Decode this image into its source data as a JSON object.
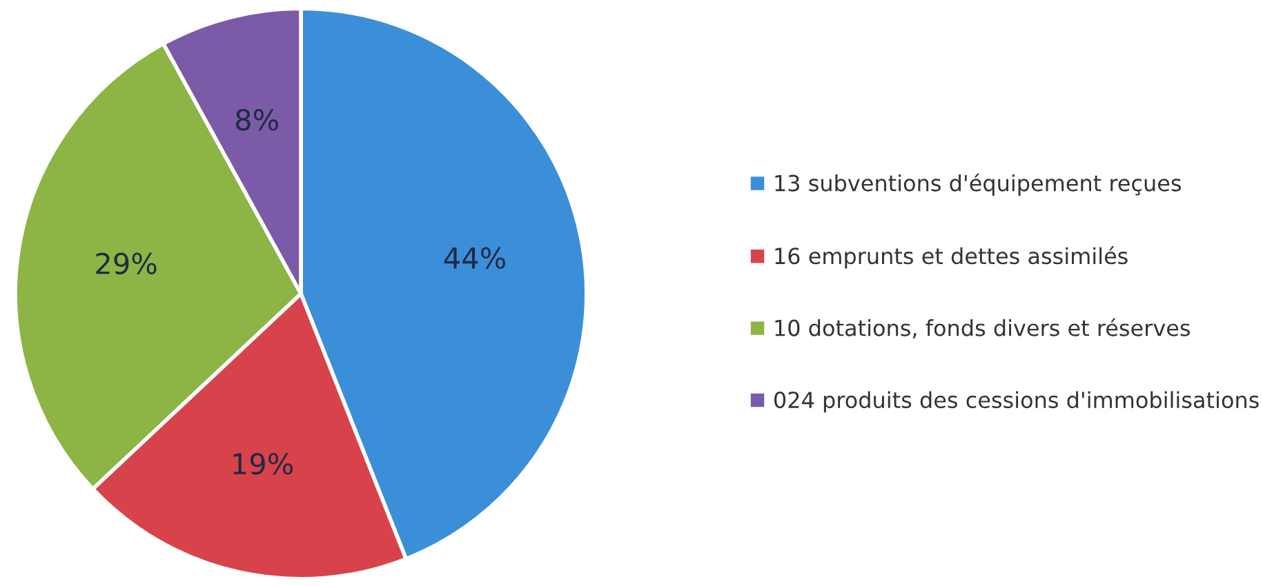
{
  "chart_data": {
    "type": "pie",
    "categories": [
      "13 subventions d'équipement reçues",
      "16 emprunts et dettes assimilés",
      "10 dotations, fonds divers et réserves",
      "024 produits des cessions d'immobilisations"
    ],
    "values": [
      44,
      19,
      29,
      8
    ],
    "value_labels": [
      "44%",
      "19%",
      "29%",
      "8%"
    ],
    "colors": [
      "#3b8fd8",
      "#d8434b",
      "#8cb545",
      "#7b5ba8"
    ],
    "legend": "right"
  }
}
